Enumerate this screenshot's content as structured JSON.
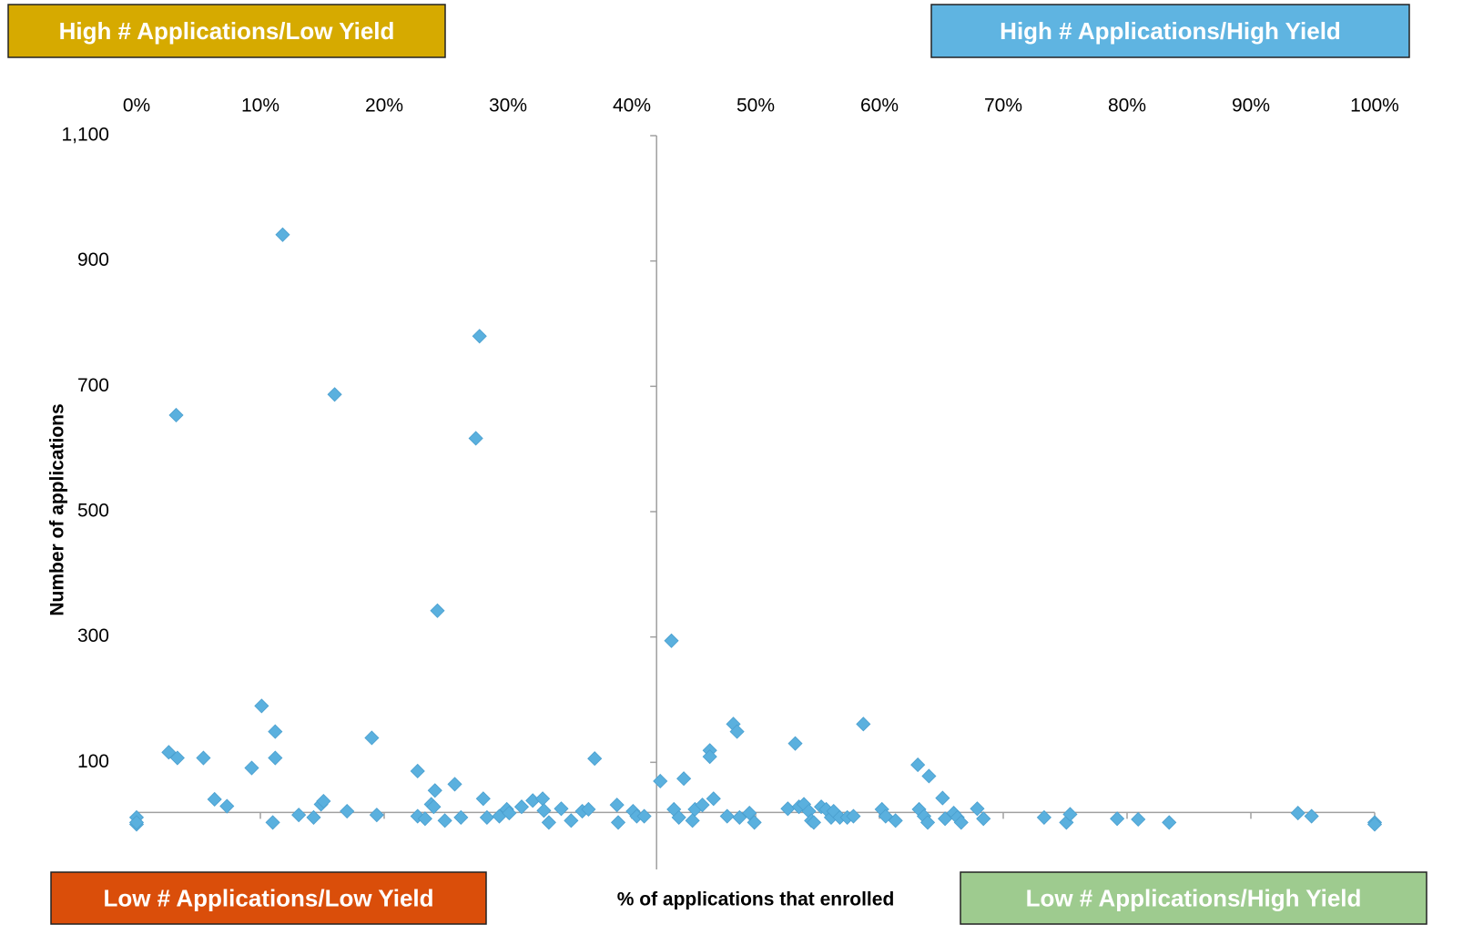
{
  "chart_data": {
    "type": "scatter",
    "x_label": "% of applications that enrolled",
    "y_label": "Number of applications",
    "color": "#5ab0de",
    "xlim": [
      0,
      100
    ],
    "ylim": [
      -100,
      1100
    ],
    "xticks": [
      {
        "value": 0,
        "label": "0%"
      },
      {
        "value": 10,
        "label": "10%"
      },
      {
        "value": 20,
        "label": "20%"
      },
      {
        "value": 30,
        "label": "30%"
      },
      {
        "value": 40,
        "label": "40%"
      },
      {
        "value": 50,
        "label": "50%"
      },
      {
        "value": 60,
        "label": "60%"
      },
      {
        "value": 70,
        "label": "70%"
      },
      {
        "value": 80,
        "label": "80%"
      },
      {
        "value": 90,
        "label": "90%"
      },
      {
        "value": 100,
        "label": "100%"
      }
    ],
    "yticks": [
      {
        "value": 1100,
        "label": "1,100"
      },
      900,
      700,
      500,
      300,
      100
    ],
    "x_tick_labels_position": "top",
    "x_axis_crosses_y": 20,
    "y_axis_crosses_x": 42,
    "annotations": [
      {
        "text": "High # Applications/Low Yield",
        "corner": "top-left",
        "color": "#d6aa00"
      },
      {
        "text": "High # Applications/High Yield",
        "corner": "top-right",
        "color": "#5fb4e1"
      },
      {
        "text": "Low # Applications/Low Yield",
        "corner": "bottom-left",
        "color": "#da4e0a"
      },
      {
        "text": "Low # Applications/High Yield",
        "corner": "bottom-right",
        "color": "#9ecb8f"
      }
    ],
    "x": [
      0,
      0,
      0,
      3.2,
      2.6,
      3.3,
      5.4,
      6.3,
      7.3,
      9.3,
      10.1,
      11.2,
      11.2,
      11,
      11.8,
      13.1,
      14.3,
      14.9,
      15.1,
      16,
      17,
      19,
      19.4,
      22.7,
      22.7,
      23.3,
      23.8,
      24,
      24.1,
      24.3,
      24.9,
      25.7,
      26.2,
      27.4,
      27.7,
      28,
      28.3,
      29.3,
      29.9,
      30.1,
      31.1,
      32,
      32.8,
      32.9,
      33.3,
      34.3,
      35.1,
      36,
      36.5,
      37,
      38.8,
      38.9,
      40.1,
      40.4,
      41,
      42.3,
      43.2,
      43.4,
      43.8,
      44.2,
      44.9,
      45.1,
      45.7,
      46.3,
      46.3,
      46.6,
      47.7,
      48.2,
      48.5,
      48.7,
      49.5,
      49.9,
      52.6,
      53.2,
      53.5,
      53.9,
      54.3,
      54.5,
      54.7,
      55.3,
      55.7,
      56.1,
      56.3,
      56.8,
      57.4,
      57.9,
      58.7,
      60.2,
      60.5,
      61.3,
      63.1,
      63.2,
      63.6,
      64,
      63.9,
      65.1,
      65.3,
      66,
      66.3,
      66.6,
      67.9,
      68.4,
      73.3,
      75.1,
      75.4,
      79.2,
      80.9,
      83.4,
      93.8,
      94.9,
      100,
      100
    ],
    "y": [
      12,
      1,
      4,
      654,
      116,
      107,
      107,
      41,
      30,
      91,
      190,
      149,
      107,
      4,
      942,
      16,
      12,
      33,
      38,
      687,
      22,
      139,
      16,
      86,
      14,
      10,
      33,
      29,
      55,
      342,
      7,
      65,
      12,
      617,
      780,
      42,
      12,
      14,
      25,
      19,
      29,
      39,
      42,
      23,
      4,
      26,
      7,
      22,
      25,
      106,
      32,
      4,
      22,
      14,
      14,
      70,
      294,
      25,
      12,
      74,
      7,
      25,
      32,
      119,
      109,
      42,
      14,
      161,
      149,
      12,
      19,
      4,
      26,
      130,
      29,
      33,
      22,
      7,
      4,
      29,
      25,
      12,
      22,
      12,
      12,
      14,
      161,
      25,
      14,
      7,
      96,
      25,
      14,
      78,
      4,
      43,
      10,
      19,
      12,
      4,
      26,
      10,
      12,
      4,
      17,
      10,
      9,
      4,
      19,
      14,
      4,
      1
    ]
  }
}
